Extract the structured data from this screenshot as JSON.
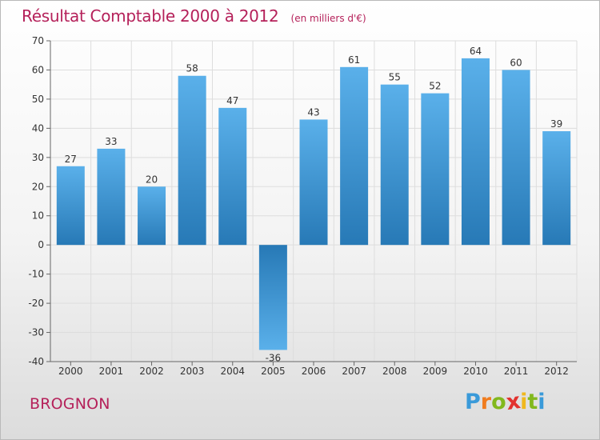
{
  "chart_data": {
    "type": "bar",
    "title": "Résultat Comptable 2000 à 2012",
    "subtitle": "(en milliers d'€)",
    "categories": [
      "2000",
      "2001",
      "2002",
      "2003",
      "2004",
      "2005",
      "2006",
      "2007",
      "2008",
      "2009",
      "2010",
      "2011",
      "2012"
    ],
    "values": [
      27,
      33,
      20,
      58,
      47,
      -36,
      43,
      61,
      55,
      52,
      64,
      60,
      39
    ],
    "ylim": [
      -40,
      70
    ],
    "yticks": [
      "-40",
      "-30",
      "-20",
      "-10",
      "0",
      "10",
      "20",
      "30",
      "40",
      "50",
      "60",
      "70"
    ],
    "grid": true,
    "xlabel": "",
    "ylabel": ""
  },
  "commune": "BROGNON",
  "brand": {
    "letters": [
      "P",
      "r",
      "o",
      "x",
      "i",
      "t",
      "i"
    ],
    "colors": [
      "#3a9ad9",
      "#f07c1e",
      "#82b81d",
      "#e2322e",
      "#f0b81e",
      "#82b81d",
      "#3a9ad9"
    ]
  },
  "colors": {
    "title": "#b5215a",
    "bar_light": "#5ab0ea",
    "bar_dark": "#2779b6",
    "grid": "#dddddd",
    "axis": "#666666"
  }
}
